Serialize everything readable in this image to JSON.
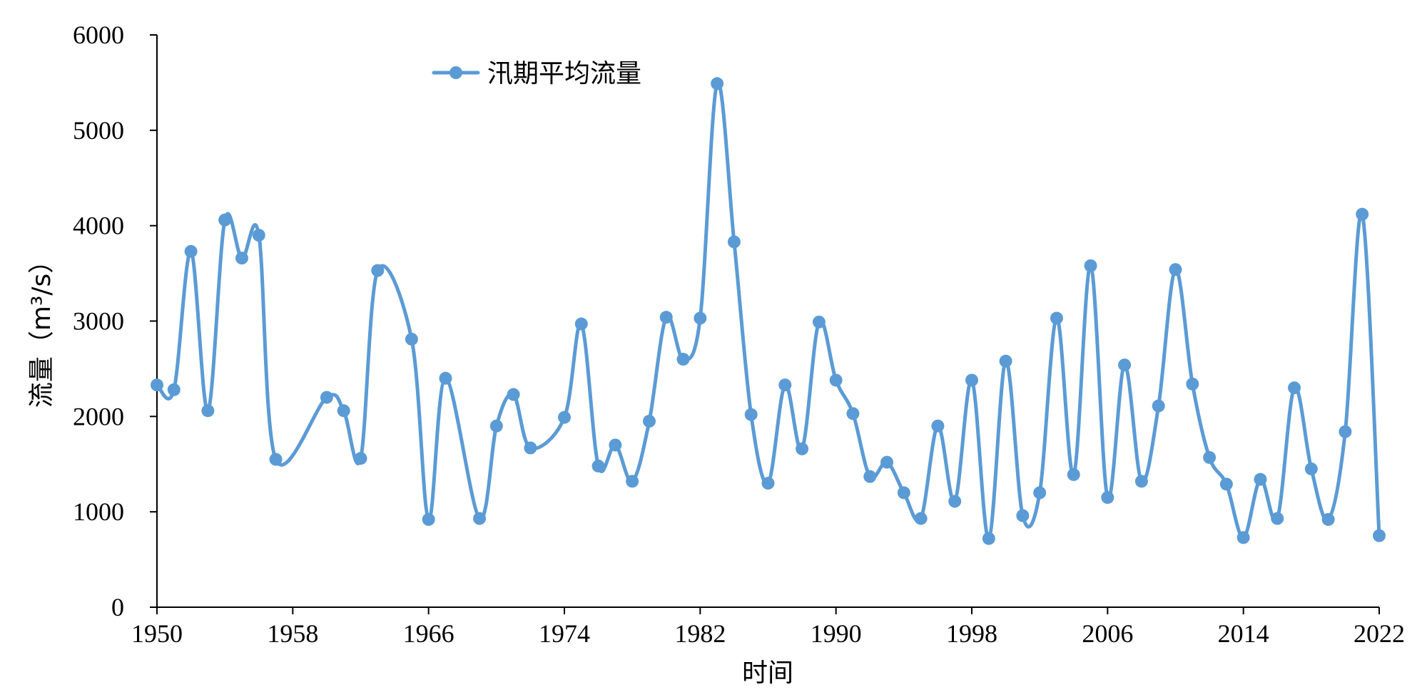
{
  "chart_data": {
    "type": "line",
    "title": "",
    "xlabel": "时间",
    "ylabel": "流量（m³/s）",
    "xlim": [
      1950,
      2022
    ],
    "ylim": [
      0,
      6000
    ],
    "x_ticks": [
      1950,
      1958,
      1966,
      1974,
      1982,
      1990,
      1998,
      2006,
      2014,
      2022
    ],
    "y_ticks": [
      0,
      1000,
      2000,
      3000,
      4000,
      5000,
      6000
    ],
    "grid": false,
    "smooth": true,
    "legend_position": "top-left",
    "series": [
      {
        "name": "汛期平均流量",
        "color": "#5b9bd5",
        "marker": "circle",
        "points": [
          [
            1950,
            2330
          ],
          [
            1951,
            2280
          ],
          [
            1952,
            3730
          ],
          [
            1953,
            2060
          ],
          [
            1954,
            4060
          ],
          [
            1955,
            3660
          ],
          [
            1956,
            3900
          ],
          [
            1957,
            1550
          ],
          [
            1960,
            2200
          ],
          [
            1961,
            2060
          ],
          [
            1962,
            1560
          ],
          [
            1963,
            3530
          ],
          [
            1965,
            2810
          ],
          [
            1966,
            920
          ],
          [
            1967,
            2400
          ],
          [
            1969,
            930
          ],
          [
            1970,
            1900
          ],
          [
            1971,
            2230
          ],
          [
            1972,
            1670
          ],
          [
            1974,
            1990
          ],
          [
            1975,
            2970
          ],
          [
            1976,
            1480
          ],
          [
            1977,
            1700
          ],
          [
            1978,
            1320
          ],
          [
            1979,
            1950
          ],
          [
            1980,
            3040
          ],
          [
            1981,
            2600
          ],
          [
            1982,
            3030
          ],
          [
            1983,
            5490
          ],
          [
            1984,
            3830
          ],
          [
            1985,
            2020
          ],
          [
            1986,
            1300
          ],
          [
            1987,
            2330
          ],
          [
            1988,
            1660
          ],
          [
            1989,
            2990
          ],
          [
            1990,
            2380
          ],
          [
            1991,
            2030
          ],
          [
            1992,
            1370
          ],
          [
            1993,
            1520
          ],
          [
            1994,
            1200
          ],
          [
            1995,
            930
          ],
          [
            1996,
            1900
          ],
          [
            1997,
            1110
          ],
          [
            1998,
            2380
          ],
          [
            1999,
            720
          ],
          [
            2000,
            2580
          ],
          [
            2001,
            960
          ],
          [
            2002,
            1200
          ],
          [
            2003,
            3030
          ],
          [
            2004,
            1390
          ],
          [
            2005,
            3580
          ],
          [
            2006,
            1150
          ],
          [
            2007,
            2540
          ],
          [
            2008,
            1320
          ],
          [
            2009,
            2110
          ],
          [
            2010,
            3540
          ],
          [
            2011,
            2340
          ],
          [
            2012,
            1570
          ],
          [
            2013,
            1290
          ],
          [
            2014,
            730
          ],
          [
            2015,
            1340
          ],
          [
            2016,
            930
          ],
          [
            2017,
            2300
          ],
          [
            2018,
            1450
          ],
          [
            2019,
            920
          ],
          [
            2020,
            1840
          ],
          [
            2021,
            4120
          ],
          [
            2022,
            750
          ]
        ]
      }
    ]
  }
}
